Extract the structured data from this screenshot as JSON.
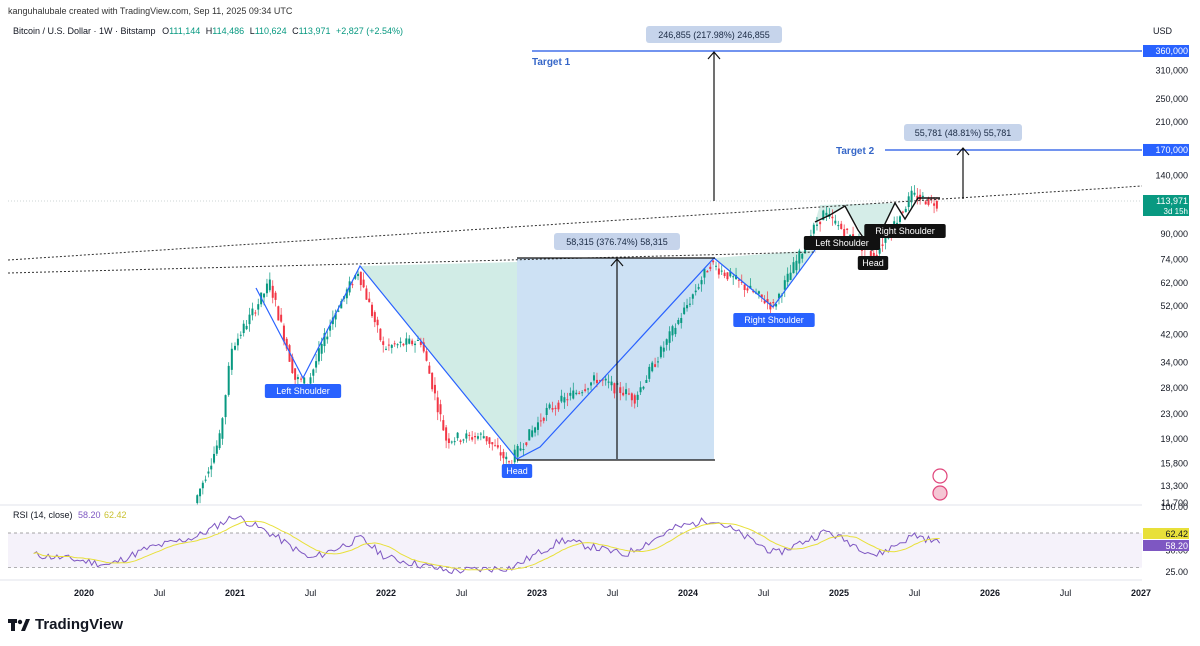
{
  "header": {
    "credit": "kanguhalubale created with TradingView.com, Sep 11, 2025 09:34 UTC",
    "symbol": "Bitcoin / U.S. Dollar · 1W · Bitstamp",
    "open_label": "O",
    "open": "111,144",
    "high_label": "H",
    "high": "114,486",
    "low_label": "L",
    "low": "110,624",
    "close_label": "C",
    "close": "113,971",
    "change": "+2,827 (+2.54%)",
    "currency": "USD"
  },
  "colors": {
    "up": "#089981",
    "down": "#f23645",
    "blue_label": "#2962ff",
    "pattern_line": "#2962ff",
    "green_fill": "#b2dfd6",
    "blue_fill": "#bcd7f0",
    "rsi_line": "#7e57c2",
    "rsi_ma": "#e8e03a"
  },
  "chart_data": {
    "type": "candlestick",
    "title": "Bitcoin / U.S. Dollar · 1W · Bitstamp",
    "ylabel": "USD",
    "y_scale": "log",
    "ylim": [
      11000,
      400000
    ],
    "x_ticks": [
      "2020",
      "Jul",
      "2021",
      "Jul",
      "2022",
      "Jul",
      "2023",
      "Jul",
      "2024",
      "Jul",
      "2025",
      "Jul",
      "2026",
      "Jul",
      "2027"
    ],
    "y_ticks": [
      "310,000",
      "250,000",
      "210,000",
      "140,000",
      "90,000",
      "74,000",
      "62,000",
      "52,000",
      "42,000",
      "34,000",
      "28,000",
      "23,000",
      "19,000",
      "15,800",
      "13,300",
      "11,700"
    ],
    "price_path": [
      {
        "date": "2020-10",
        "price": 11700
      },
      {
        "date": "2020-12",
        "price": 19000
      },
      {
        "date": "2021-01",
        "price": 38000
      },
      {
        "date": "2021-04",
        "price": 62000
      },
      {
        "date": "2021-06",
        "price": 30000
      },
      {
        "date": "2021-07",
        "price": 29000
      },
      {
        "date": "2021-09",
        "price": 48000
      },
      {
        "date": "2021-11",
        "price": 68000
      },
      {
        "date": "2022-01",
        "price": 38000
      },
      {
        "date": "2022-04",
        "price": 40000
      },
      {
        "date": "2022-06",
        "price": 19000
      },
      {
        "date": "2022-09",
        "price": 19500
      },
      {
        "date": "2022-11",
        "price": 15800
      },
      {
        "date": "2023-02",
        "price": 23500
      },
      {
        "date": "2023-06",
        "price": 30000
      },
      {
        "date": "2023-09",
        "price": 26000
      },
      {
        "date": "2023-12",
        "price": 43000
      },
      {
        "date": "2024-03",
        "price": 72000
      },
      {
        "date": "2024-08",
        "price": 52000
      },
      {
        "date": "2024-11",
        "price": 90000
      },
      {
        "date": "2024-12",
        "price": 105000
      },
      {
        "date": "2025-04",
        "price": 76000
      },
      {
        "date": "2025-07",
        "price": 120000
      },
      {
        "date": "2025-09",
        "price": 113971
      }
    ],
    "target_lines": [
      {
        "label": "Target 1",
        "price": 360000,
        "price_label": "360,000"
      },
      {
        "label": "Target 2",
        "price": 170000,
        "price_label": "170,000"
      }
    ],
    "measurements": [
      {
        "text": "246,855 (217.98%) 246,855"
      },
      {
        "text": "55,781 (48.81%) 55,781"
      },
      {
        "text": "58,315 (376.74%) 58,315"
      }
    ],
    "pattern_labels": [
      {
        "text": "Left Shoulder",
        "pattern": "large"
      },
      {
        "text": "Head",
        "pattern": "large"
      },
      {
        "text": "Right Shoulder",
        "pattern": "large"
      },
      {
        "text": "Left Shoulder",
        "pattern": "small"
      },
      {
        "text": "Head",
        "pattern": "small"
      },
      {
        "text": "Right Shoulder",
        "pattern": "small"
      }
    ],
    "last_price": {
      "value": "113,971",
      "countdown": "3d 15h"
    },
    "rsi": {
      "label": "RSI (14, close)",
      "value": "58.20",
      "ma_value": "62.42",
      "ticks": [
        "100.00",
        "50.00",
        "25.00"
      ],
      "overbought": 70,
      "oversold": 30,
      "path": [
        {
          "date": "2019-09",
          "value": 45
        },
        {
          "date": "2019-12",
          "value": 40
        },
        {
          "date": "2020-03",
          "value": 33
        },
        {
          "date": "2020-06",
          "value": 52
        },
        {
          "date": "2020-10",
          "value": 66
        },
        {
          "date": "2021-01",
          "value": 90
        },
        {
          "date": "2021-04",
          "value": 68
        },
        {
          "date": "2021-07",
          "value": 40
        },
        {
          "date": "2021-11",
          "value": 64
        },
        {
          "date": "2022-01",
          "value": 42
        },
        {
          "date": "2022-06",
          "value": 26
        },
        {
          "date": "2022-11",
          "value": 30
        },
        {
          "date": "2023-03",
          "value": 62
        },
        {
          "date": "2023-08",
          "value": 45
        },
        {
          "date": "2023-12",
          "value": 76
        },
        {
          "date": "2024-03",
          "value": 86
        },
        {
          "date": "2024-08",
          "value": 46
        },
        {
          "date": "2024-12",
          "value": 72
        },
        {
          "date": "2025-04",
          "value": 44
        },
        {
          "date": "2025-07",
          "value": 68
        },
        {
          "date": "2025-09",
          "value": 58.2
        }
      ]
    }
  },
  "footer": {
    "brand": "TradingView",
    "logo_icon": "tradingview-logo-icon"
  }
}
